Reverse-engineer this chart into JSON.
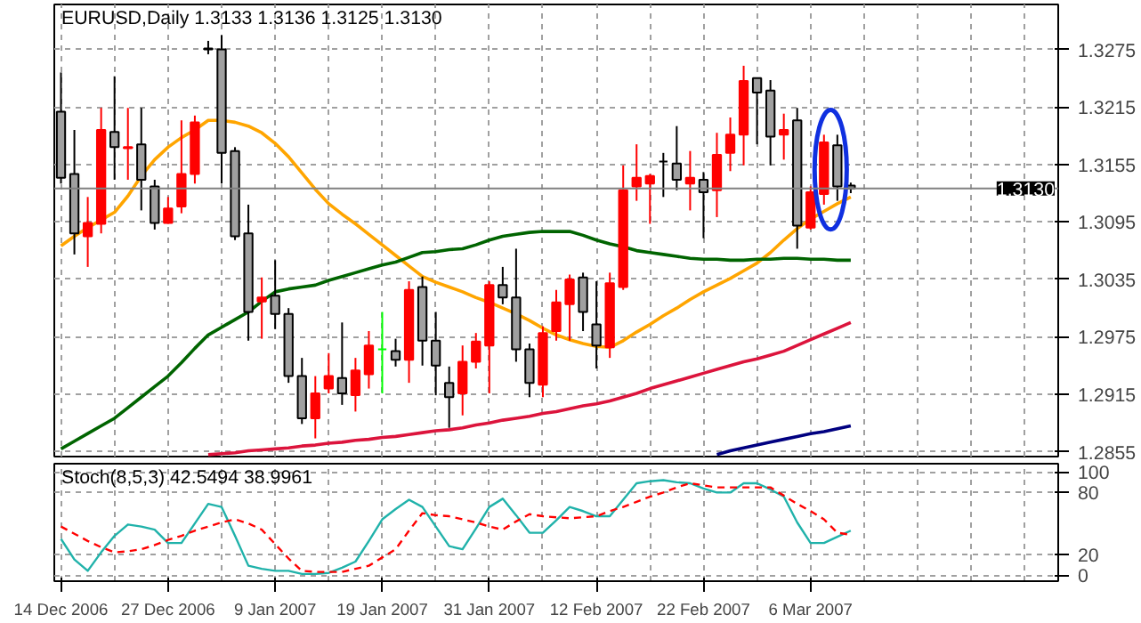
{
  "chart_data": [
    {
      "type": "candlestick",
      "title": "EURUSD,Daily 1.3133 1.3136 1.3125 1.3130",
      "categories": [
        null,
        null,
        null,
        null,
        null,
        null,
        null,
        null,
        null,
        null,
        null,
        null,
        null,
        null,
        null,
        null,
        null,
        null,
        null,
        null,
        null,
        null,
        null,
        null,
        null,
        null,
        null,
        null,
        null,
        null,
        null,
        null,
        null,
        null,
        null,
        null,
        null,
        null,
        null,
        null,
        null,
        null,
        null,
        null,
        null,
        null,
        null,
        null,
        null,
        null,
        null,
        null,
        null,
        null,
        null,
        null,
        null,
        null,
        null,
        null,
        null,
        null,
        null,
        null,
        null,
        null,
        null,
        null,
        null,
        null,
        null,
        null,
        null,
        null,
        null
      ],
      "ohlc": [
        [
          1.321,
          1.3251,
          1.3135,
          1.3141
        ],
        [
          1.3145,
          1.3191,
          1.3061,
          1.3083
        ],
        [
          1.308,
          1.3121,
          1.3048,
          1.3094
        ],
        [
          1.3093,
          1.3214,
          1.3083,
          1.3191
        ],
        [
          1.3189,
          1.3247,
          1.3139,
          1.3173
        ],
        [
          1.3172,
          1.3214,
          1.3139,
          1.3173
        ],
        [
          1.3176,
          1.3214,
          1.3107,
          1.3139
        ],
        [
          1.3132,
          1.3139,
          1.3087,
          1.3094
        ],
        [
          1.3094,
          1.3121,
          1.3093,
          1.3109
        ],
        [
          1.3111,
          1.3201,
          1.3104,
          1.3145
        ],
        [
          1.3145,
          1.3206,
          1.3135,
          1.3199
        ],
        [
          1.3276,
          1.3284,
          1.327,
          1.3275
        ],
        [
          1.3275,
          1.329,
          1.3135,
          1.3167
        ],
        [
          1.3169,
          1.3173,
          1.3076,
          1.308
        ],
        [
          1.3083,
          1.3113,
          1.2971,
          1.3001
        ],
        [
          1.3012,
          1.3037,
          1.2973,
          1.3016
        ],
        [
          1.3018,
          1.3055,
          1.2983,
          1.2999
        ],
        [
          1.2999,
          1.3005,
          1.2927,
          1.2934
        ],
        [
          1.2934,
          1.2953,
          1.2884,
          1.289
        ],
        [
          1.289,
          1.2934,
          1.2869,
          1.2916
        ],
        [
          1.2921,
          1.2958,
          1.2916,
          1.2934
        ],
        [
          1.2932,
          1.299,
          1.2904,
          1.2916
        ],
        [
          1.2914,
          1.2953,
          1.2897,
          1.294
        ],
        [
          1.2936,
          1.2981,
          1.2921,
          1.2966
        ],
        [
          1.2962,
          1.3001,
          1.2916,
          1.2962
        ],
        [
          1.296,
          1.2973,
          1.2944,
          1.2951
        ],
        [
          1.2951,
          1.3033,
          1.2927,
          1.3024
        ],
        [
          1.3027,
          1.3038,
          1.2945,
          1.2971
        ],
        [
          1.2971,
          1.3001,
          1.2914,
          1.2945
        ],
        [
          1.2927,
          1.2944,
          1.288,
          1.2912
        ],
        [
          1.2916,
          1.2966,
          1.2893,
          1.2949
        ],
        [
          1.2949,
          1.2979,
          1.2942,
          1.297
        ],
        [
          1.2966,
          1.3033,
          1.2916,
          1.3029
        ],
        [
          1.3029,
          1.3048,
          1.3009,
          1.3016
        ],
        [
          1.3016,
          1.3067,
          1.2949,
          1.2962
        ],
        [
          1.2962,
          1.2968,
          1.2912,
          1.2927
        ],
        [
          1.2925,
          1.2986,
          1.2912,
          1.2979
        ],
        [
          1.2981,
          1.3024,
          1.2971,
          1.3011
        ],
        [
          1.3009,
          1.304,
          1.2971,
          1.3035
        ],
        [
          1.3037,
          1.3042,
          1.2981,
          1.3001
        ],
        [
          1.2988,
          1.3033,
          1.2942,
          1.2966
        ],
        [
          1.2964,
          1.3042,
          1.2953,
          1.3031
        ],
        [
          1.3027,
          1.3154,
          1.3024,
          1.3128
        ],
        [
          1.3132,
          1.3176,
          1.3117,
          1.3141
        ],
        [
          1.3135,
          1.3145,
          1.3093,
          1.3143
        ],
        [
          1.3158,
          1.3167,
          1.3121,
          1.3158
        ],
        [
          1.3156,
          1.3195,
          1.3128,
          1.3139
        ],
        [
          1.3135,
          1.3169,
          1.3107,
          1.3141
        ],
        [
          1.3139,
          1.3147,
          1.3078,
          1.3126
        ],
        [
          1.3128,
          1.3188,
          1.31,
          1.3165
        ],
        [
          1.3167,
          1.3204,
          1.3148,
          1.3186
        ],
        [
          1.3186,
          1.3258,
          1.3154,
          1.3242
        ],
        [
          1.3245,
          1.3245,
          1.3176,
          1.323
        ],
        [
          1.3232,
          1.3243,
          1.3154,
          1.3184
        ],
        [
          1.3186,
          1.3208,
          1.316,
          1.3191
        ],
        [
          1.3201,
          1.3214,
          1.3067,
          1.3091
        ],
        [
          1.3089,
          1.3132,
          1.3087,
          1.3126
        ],
        [
          1.3124,
          1.3186,
          1.3113,
          1.3178
        ],
        [
          1.3175,
          1.3186,
          1.3117,
          1.3132
        ],
        [
          1.3133,
          1.3136,
          1.3125,
          1.313
        ],
        null,
        null,
        null,
        null,
        null,
        null,
        null,
        null,
        null,
        null,
        null,
        null,
        null,
        null,
        null
      ],
      "colors": [
        "#a0a0a0",
        "#a0a0a0",
        "#ff0000",
        "#ff0000",
        "#a0a0a0",
        "#ff0000",
        "#a0a0a0",
        "#a0a0a0",
        "#ff0000",
        "#ff0000",
        "#ff0000",
        "#000000",
        "#a0a0a0",
        "#a0a0a0",
        "#a0a0a0",
        "#ff0000",
        "#a0a0a0",
        "#a0a0a0",
        "#a0a0a0",
        "#ff0000",
        "#ff0000",
        "#a0a0a0",
        "#ff0000",
        "#ff0000",
        "#00ff00",
        "#a0a0a0",
        "#ff0000",
        "#a0a0a0",
        "#a0a0a0",
        "#a0a0a0",
        "#ff0000",
        "#ff0000",
        "#ff0000",
        "#a0a0a0",
        "#a0a0a0",
        "#a0a0a0",
        "#ff0000",
        "#ff0000",
        "#ff0000",
        "#a0a0a0",
        "#a0a0a0",
        "#ff0000",
        "#ff0000",
        "#ff0000",
        "#ff0000",
        "#000000",
        "#a0a0a0",
        "#ff0000",
        "#a0a0a0",
        "#ff0000",
        "#ff0000",
        "#ff0000",
        "#a0a0a0",
        "#a0a0a0",
        "#ff0000",
        "#a0a0a0",
        "#ff0000",
        "#ff0000",
        "#a0a0a0",
        "#a0a0a0",
        null,
        null,
        null,
        null,
        null,
        null,
        null,
        null,
        null,
        null,
        null,
        null,
        null,
        null,
        null
      ],
      "series": [
        {
          "type": "line",
          "color": "#ffa500",
          "values": [
            1.307,
            1.308,
            1.3089,
            1.3097,
            1.3105,
            1.3122,
            1.3143,
            1.316,
            1.3173,
            1.3183,
            1.3191,
            1.3201,
            1.3201,
            1.3199,
            1.3195,
            1.3188,
            1.3177,
            1.3163,
            1.3146,
            1.3129,
            1.3114,
            1.3103,
            1.3093,
            1.3082,
            1.3071,
            1.306,
            1.3049,
            1.3038,
            1.3032,
            1.3027,
            1.3022,
            1.3016,
            1.3011,
            1.3005,
            1.2999,
            1.2992,
            1.2984,
            1.2977,
            1.2972,
            1.2968,
            1.2965,
            1.2964,
            1.2971,
            1.298,
            1.2988,
            1.2997,
            1.3005,
            1.3014,
            1.3022,
            1.3029,
            1.3036,
            1.3044,
            1.3052,
            1.3063,
            1.3076,
            1.3088,
            1.3098,
            1.3106,
            1.3114,
            1.3121,
            null,
            null,
            null,
            null,
            null,
            null,
            null,
            null,
            null,
            null,
            null,
            null,
            null,
            null,
            null
          ]
        },
        {
          "type": "line",
          "color": "#006400",
          "values": [
            1.2858,
            1.2866,
            1.2874,
            1.2882,
            1.289,
            1.2901,
            1.2912,
            1.2923,
            1.2934,
            1.2948,
            1.2963,
            1.2977,
            1.2985,
            1.2993,
            1.3001,
            1.3012,
            1.3022,
            1.3025,
            1.3027,
            1.3029,
            1.3034,
            1.3038,
            1.3042,
            1.3046,
            1.305,
            1.3053,
            1.3058,
            1.3063,
            1.3064,
            1.3066,
            1.3067,
            1.3071,
            1.3076,
            1.308,
            1.3082,
            1.3084,
            1.3085,
            1.3085,
            1.3085,
            1.3081,
            1.3076,
            1.3072,
            1.3069,
            1.3065,
            1.3063,
            1.3061,
            1.3059,
            1.3057,
            1.3056,
            1.3056,
            1.3055,
            1.3055,
            1.3056,
            1.3056,
            1.3057,
            1.3057,
            1.3056,
            1.3056,
            1.3055,
            1.3055,
            null,
            null,
            null,
            null,
            null,
            null,
            null,
            null,
            null,
            null,
            null,
            null,
            null,
            null,
            null
          ]
        },
        {
          "type": "line",
          "color": "#dc143c",
          "values": [
            null,
            null,
            null,
            null,
            null,
            null,
            null,
            null,
            null,
            null,
            null,
            1.2852,
            1.2853,
            1.2854,
            1.2856,
            1.2857,
            1.2858,
            1.2859,
            1.2861,
            1.2862,
            1.2864,
            1.2865,
            1.2867,
            1.2868,
            1.287,
            1.2871,
            1.2873,
            1.2875,
            1.2877,
            1.2878,
            1.288,
            1.2883,
            1.2885,
            1.2888,
            1.289,
            1.2892,
            1.2895,
            1.2897,
            1.29,
            1.2903,
            1.2905,
            1.2908,
            1.2912,
            1.2916,
            1.2921,
            1.2925,
            1.2929,
            1.2933,
            1.2937,
            1.2941,
            1.2945,
            1.2949,
            1.2952,
            1.2956,
            1.296,
            1.2966,
            1.2972,
            1.2978,
            1.2984,
            1.299,
            null,
            null,
            null,
            null,
            null,
            null,
            null,
            null,
            null,
            null,
            null,
            null,
            null,
            null,
            null
          ]
        },
        {
          "type": "line",
          "color": "#000080",
          "values": [
            null,
            null,
            null,
            null,
            null,
            null,
            null,
            null,
            null,
            null,
            null,
            null,
            null,
            null,
            null,
            null,
            null,
            null,
            null,
            null,
            null,
            null,
            null,
            null,
            null,
            null,
            null,
            null,
            null,
            null,
            null,
            null,
            null,
            null,
            null,
            null,
            null,
            null,
            null,
            null,
            null,
            null,
            null,
            null,
            null,
            null,
            null,
            null,
            null,
            1.2852,
            1.2856,
            1.2859,
            1.2862,
            1.2865,
            1.2868,
            1.2871,
            1.2874,
            1.2876,
            1.2879,
            1.2882,
            null,
            null,
            null,
            null,
            null,
            null,
            null,
            null,
            null,
            null,
            null,
            null,
            null,
            null,
            null
          ]
        }
      ],
      "ylim": [
        1.285,
        1.3322
      ],
      "yticks": [
        1.2855,
        1.2915,
        1.2975,
        1.3035,
        1.3095,
        1.3155,
        1.3215,
        1.3275
      ],
      "tick_labels": "y",
      "grid": true,
      "ref_lines": [
        {
          "axis": "y",
          "value": 1.313,
          "label": "1.3130",
          "color": "#808080",
          "line_style": "solid"
        }
      ]
    },
    {
      "type": "line",
      "title": "Stoch(8,5,3) 42.5494 38.9961",
      "categories": [
        "14 Dec 2006",
        null,
        null,
        null,
        null,
        null,
        null,
        null,
        "27 Dec 2006",
        null,
        null,
        null,
        null,
        null,
        null,
        null,
        "9 Jan 2007",
        null,
        null,
        null,
        null,
        null,
        null,
        null,
        "19 Jan 2007",
        null,
        null,
        null,
        null,
        null,
        null,
        null,
        "31 Jan 2007",
        null,
        null,
        null,
        null,
        null,
        null,
        null,
        "12 Feb 2007",
        null,
        null,
        null,
        null,
        null,
        null,
        null,
        "22 Feb 2007",
        null,
        null,
        null,
        null,
        null,
        null,
        null,
        "6 Mar 2007",
        null,
        null,
        null,
        null,
        null,
        null,
        null,
        null,
        null,
        null,
        null,
        null,
        null,
        null,
        null,
        null,
        null,
        null
      ],
      "series": [
        {
          "color": "#20b2aa",
          "line_style": "solid",
          "values": [
            35,
            15,
            4,
            22,
            38,
            49,
            47,
            44,
            31,
            31,
            50,
            69,
            66,
            38,
            9,
            6,
            4,
            4,
            1,
            1,
            2,
            7,
            13,
            33,
            54,
            64,
            73,
            66,
            47,
            28,
            25,
            45,
            66,
            74,
            58,
            41,
            41,
            53,
            66,
            62,
            57,
            57,
            73,
            89,
            91,
            92,
            90,
            89,
            84,
            80,
            80,
            89,
            89,
            83,
            76,
            51,
            31,
            31,
            37,
            43,
            null,
            null,
            null,
            null,
            null,
            null,
            null,
            null,
            null,
            null,
            null,
            null,
            null,
            null,
            null
          ]
        },
        {
          "color": "#ff0000",
          "line_style": "dashed",
          "values": [
            47,
            40,
            33,
            27,
            22,
            23,
            25,
            29,
            34,
            38,
            43,
            47,
            51,
            54,
            50,
            44,
            30,
            16,
            4,
            3,
            3,
            3,
            6,
            9,
            17,
            25,
            43,
            60,
            58,
            57,
            54,
            51,
            47,
            44,
            52,
            59,
            57,
            56,
            55,
            56,
            57,
            62,
            66,
            71,
            76,
            80,
            85,
            89,
            87,
            85,
            85,
            85,
            85,
            85,
            77,
            69,
            62,
            54,
            41,
            39,
            null,
            null,
            null,
            null,
            null,
            null,
            null,
            null,
            null,
            null,
            null,
            null,
            null,
            null,
            null
          ]
        }
      ],
      "ylim": [
        -6,
        108
      ],
      "yticks": [
        0,
        20,
        80,
        100
      ],
      "grid": true
    }
  ]
}
